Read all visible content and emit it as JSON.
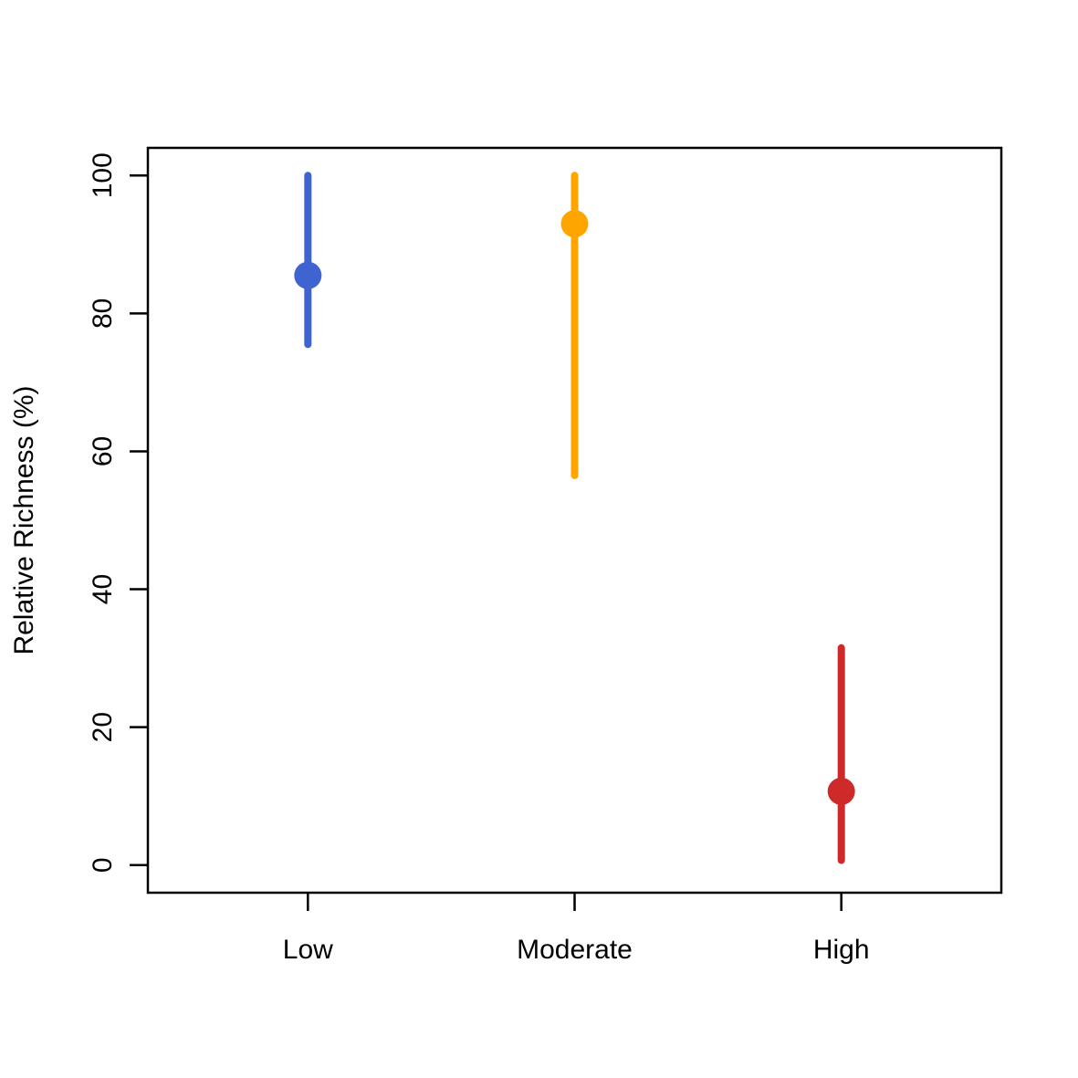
{
  "chart_data": {
    "type": "scatter",
    "title": "",
    "xlabel": "",
    "ylabel": "Relative Richness (%)",
    "ylim": [
      -4,
      104
    ],
    "yticks": [
      0,
      20,
      40,
      60,
      80,
      100
    ],
    "ytick_labels": [
      "0",
      "20",
      "40",
      "60",
      "80",
      "100"
    ],
    "categories": [
      "Low",
      "Moderate",
      "High"
    ],
    "points": [
      {
        "category": "Low",
        "value": 85.5,
        "lower": 75.5,
        "upper": 100,
        "color": "#3f63d0"
      },
      {
        "category": "Moderate",
        "value": 93,
        "lower": 56.5,
        "upper": 100,
        "color": "#ffa500"
      },
      {
        "category": "High",
        "value": 10.7,
        "lower": 0.7,
        "upper": 31.5,
        "color": "#cf2a2a"
      }
    ],
    "grid": false,
    "legend": "none"
  }
}
